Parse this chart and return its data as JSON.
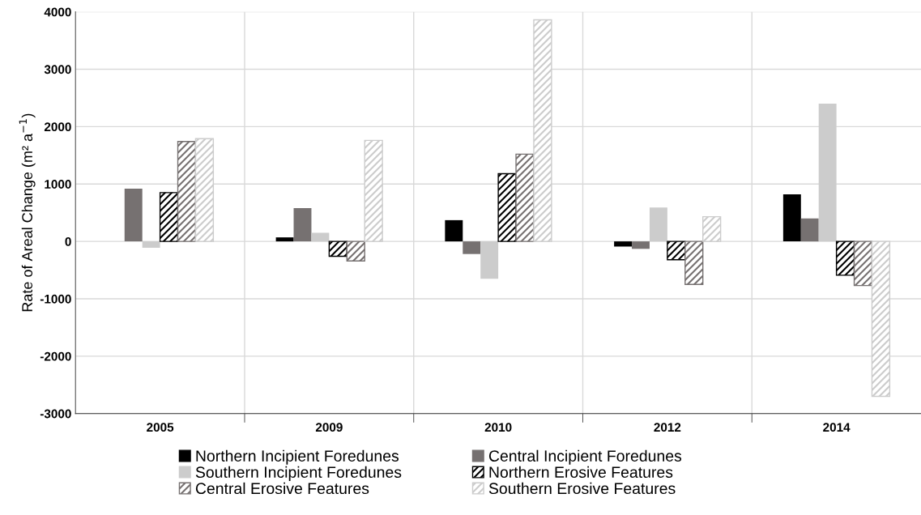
{
  "chart_data": {
    "type": "bar",
    "ylabel": "Rate of Areal Change (m² a$^{−1}$)",
    "categories": [
      "2005",
      "2009",
      "2010",
      "2012",
      "2014"
    ],
    "series": [
      {
        "name": "Northern Incipient Foredunes",
        "color": "#000000",
        "values": [
          null,
          70,
          370,
          -90,
          820
        ]
      },
      {
        "name": "Central Incipient Foredunes",
        "color": "#767171",
        "values": [
          920,
          580,
          -220,
          -130,
          400
        ]
      },
      {
        "name": "Southern Incipient Foredunes",
        "color": "#cccccc",
        "values": [
          -110,
          150,
          -650,
          590,
          2400
        ]
      },
      {
        "name": "Northern Erosive Features",
        "color": "#000000",
        "values": [
          850,
          -260,
          1180,
          -320,
          -590
        ]
      },
      {
        "name": "Central Erosive Features",
        "color": "#767171",
        "values": [
          1740,
          -340,
          1520,
          -750,
          -770
        ]
      },
      {
        "name": "Southern Erosive Features",
        "color": "#cccccc",
        "values": [
          1790,
          1760,
          3860,
          430,
          -2700
        ]
      }
    ],
    "ylim": [
      -3000,
      4000
    ],
    "yticks": [
      -3000,
      -2000,
      -1000,
      0,
      1000,
      2000,
      3000,
      4000
    ],
    "grid": true,
    "legend": "bottom"
  }
}
